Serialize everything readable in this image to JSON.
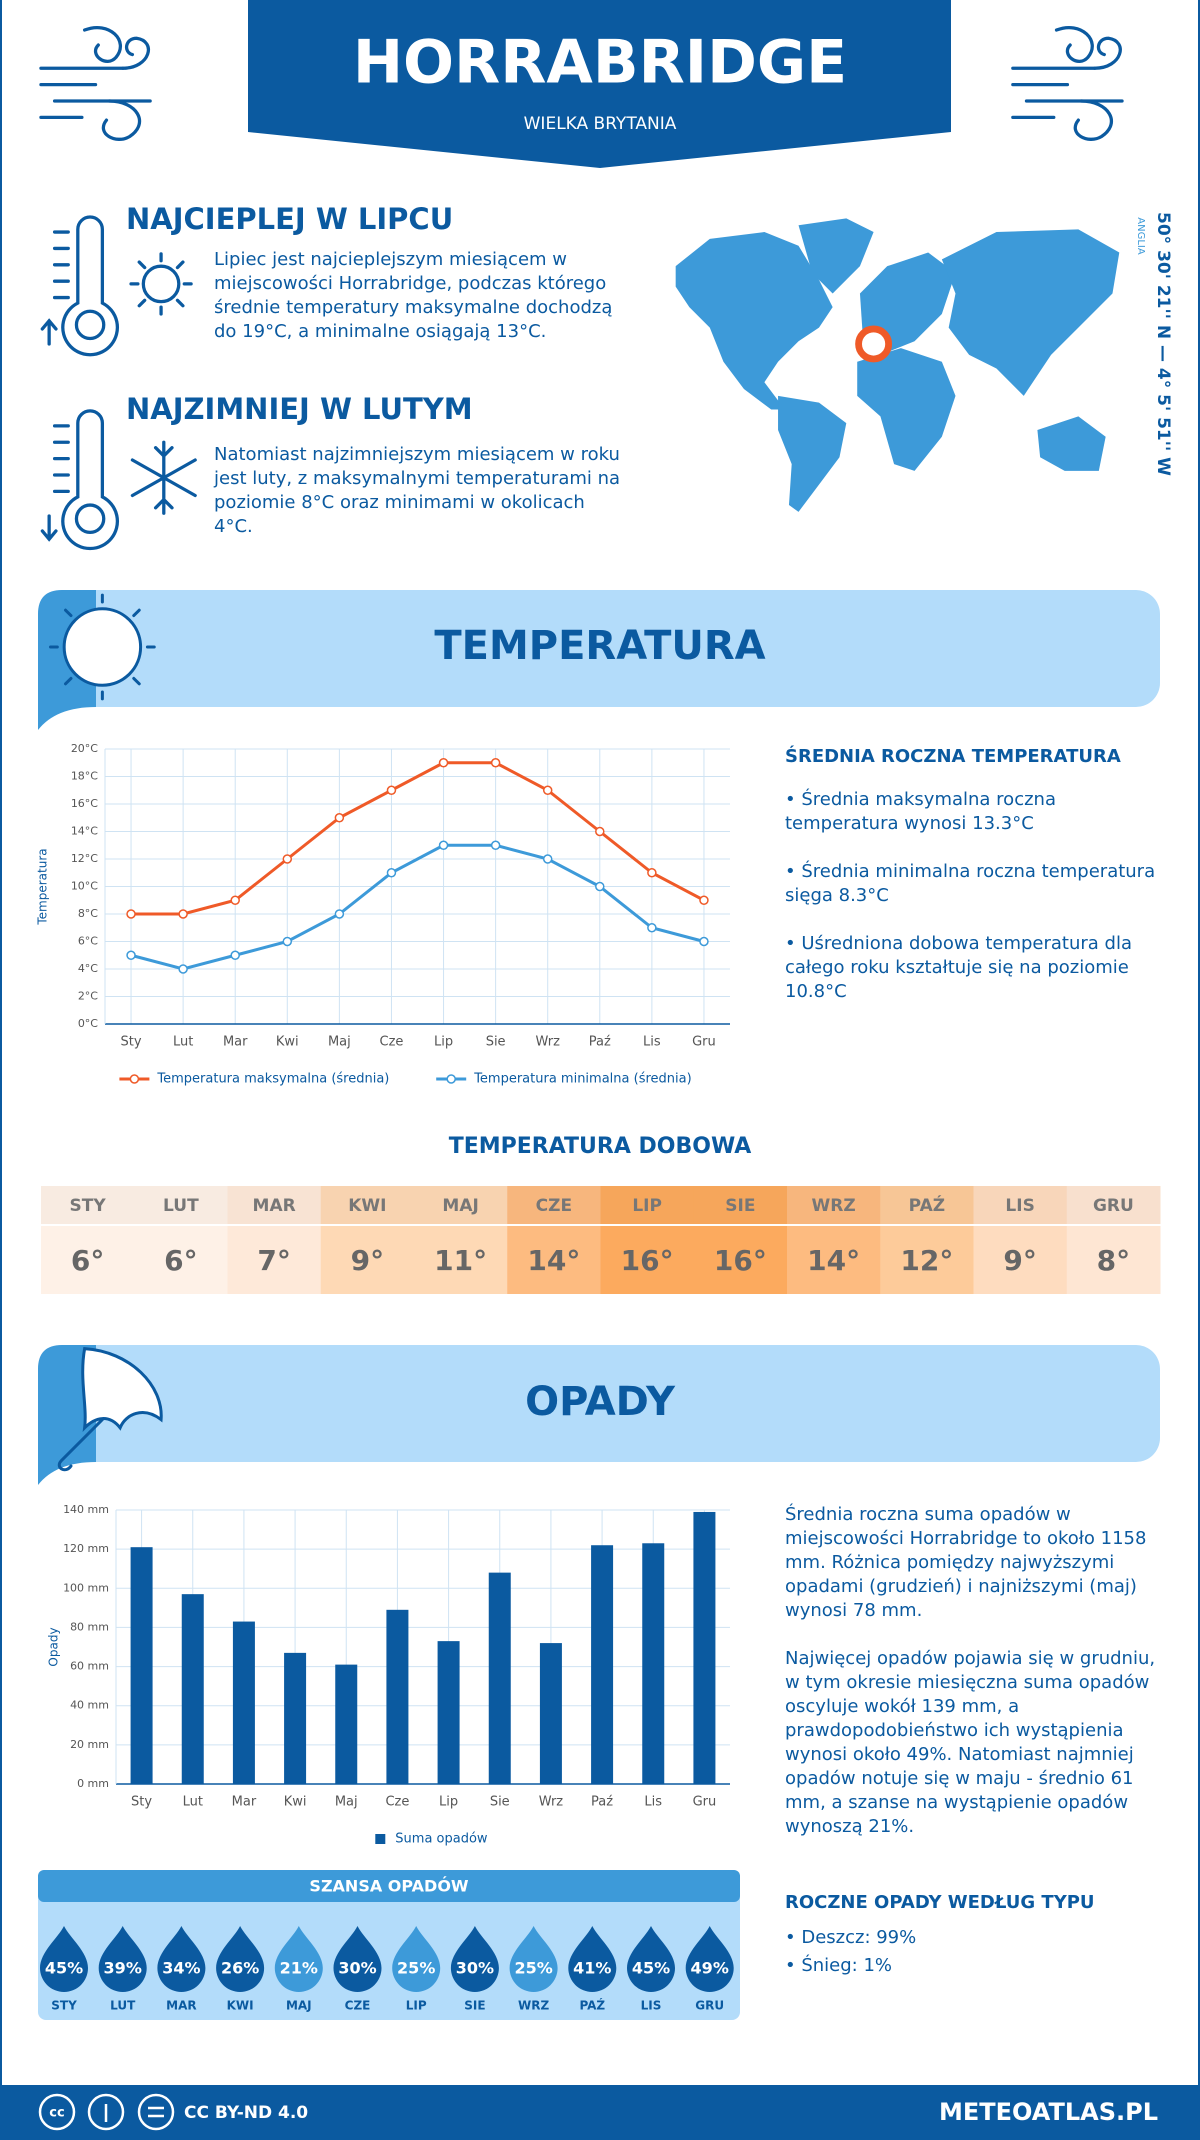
{
  "header": {
    "title": "HORRABRIDGE",
    "subtitle": "WIELKA BRYTANIA"
  },
  "warmest": {
    "title": "NAJCIEPLEJ W LIPCU",
    "text": "Lipiec jest najcieplejszym miesiącem w miejscowości Horrabridge, podczas którego średnie temperatury maksymalne dochodzą do 19°C, a minimalne osiągają 13°C."
  },
  "coldest": {
    "title": "NAJZIMNIEJ W LUTYM",
    "text": "Natomiast najzimniejszym miesiącem w roku jest luty, z maksymalnymi temperaturami na poziomie 8°C oraz minimami w okolicach 4°C."
  },
  "location": {
    "coordinates": "50° 30' 21'' N — 4° 5' 51'' W",
    "region": "ANGLIA"
  },
  "temperature_section": {
    "title": "TEMPERATURA"
  },
  "temperature_stats": {
    "title": "ŚREDNIA ROCZNA TEMPERATURA",
    "items": [
      "• Średnia maksymalna roczna temperatura wynosi 13.3°C",
      "• Średnia minimalna roczna temperatura sięga 8.3°C",
      "• Uśredniona dobowa temperatura dla całego roku kształtuje się na poziomie 10.8°C"
    ]
  },
  "daily_temperature": {
    "title": "TEMPERATURA DOBOWA",
    "months": [
      "STY",
      "LUT",
      "MAR",
      "KWI",
      "MAJ",
      "CZE",
      "LIP",
      "SIE",
      "WRZ",
      "PAŹ",
      "LIS",
      "GRU"
    ],
    "values": [
      "6°",
      "6°",
      "7°",
      "9°",
      "11°",
      "14°",
      "16°",
      "16°",
      "14°",
      "12°",
      "9°",
      "8°"
    ],
    "colors": [
      "#fef1e7",
      "#fef1e7",
      "#fee9d9",
      "#fed9b5",
      "#fed9b5",
      "#fdbb80",
      "#fcaa5e",
      "#fcaa5e",
      "#fdbb80",
      "#fdcb9a",
      "#fedcbf",
      "#fee6d3"
    ]
  },
  "precipitation_section": {
    "title": "OPADY"
  },
  "precipitation_text": {
    "paragraphs": [
      "Średnia roczna suma opadów w miejscowości Horrabridge to około 1158 mm. Różnica pomiędzy najwyższymi opadami (grudzień) i najniższymi (maj) wynosi 78 mm.",
      "Najwięcej opadów pojawia się w grudniu, w tym okresie miesięczna suma opadów oscyluje wokół 139 mm, a prawdopodobieństwo ich wystąpienia wynosi około 49%. Natomiast najmniej opadów notuje się w maju - średnio 61 mm, a szanse na wystąpienie opadów wynoszą 21%."
    ]
  },
  "precipitation_chance": {
    "title": "SZANSA OPADÓW",
    "months": [
      "STY",
      "LUT",
      "MAR",
      "KWI",
      "MAJ",
      "CZE",
      "LIP",
      "SIE",
      "WRZ",
      "PAŹ",
      "LIS",
      "GRU"
    ],
    "values": [
      45,
      39,
      34,
      26,
      21,
      30,
      25,
      30,
      25,
      41,
      45,
      49
    ],
    "value_labels": [
      "45%",
      "39%",
      "34%",
      "26%",
      "21%",
      "30%",
      "25%",
      "30%",
      "25%",
      "41%",
      "45%",
      "49%"
    ],
    "colors": [
      "#0b5aa0",
      "#0b5aa0",
      "#0b5aa0",
      "#0b5aa0",
      "#3d9ad9",
      "#0b5aa0",
      "#3d9ad9",
      "#0b5aa0",
      "#3d9ad9",
      "#0b5aa0",
      "#0b5aa0",
      "#0b5aa0"
    ]
  },
  "precipitation_types": {
    "title": "ROCZNE OPADY WEDŁUG TYPU",
    "items": [
      "• Deszcz: 99%",
      "• Śnieg: 1%"
    ]
  },
  "footer": {
    "license": "CC BY-ND 4.0",
    "site": "METEOATLAS.PL"
  },
  "chart_data": [
    {
      "type": "line",
      "y_label": "Temperatura",
      "categories": [
        "Sty",
        "Lut",
        "Mar",
        "Kwi",
        "Maj",
        "Cze",
        "Lip",
        "Sie",
        "Wrz",
        "Paź",
        "Lis",
        "Gru"
      ],
      "series": [
        {
          "name": "Temperatura maksymalna (średnia)",
          "color": "#ef5a28",
          "values": [
            8,
            8,
            9,
            12,
            15,
            17,
            19,
            19,
            17,
            14,
            11,
            9
          ]
        },
        {
          "name": "Temperatura minimalna (średnia)",
          "color": "#3d9ad9",
          "values": [
            5,
            4,
            5,
            6,
            8,
            11,
            13,
            13,
            12,
            10,
            7,
            6
          ]
        }
      ],
      "ylim": [
        0,
        20
      ],
      "yticks": [
        {
          "value": 0,
          "label": "0°C"
        },
        {
          "value": 2,
          "label": "2°C"
        },
        {
          "value": 4,
          "label": "4°C"
        },
        {
          "value": 6,
          "label": "6°C"
        },
        {
          "value": 8,
          "label": "8°C"
        },
        {
          "value": 10,
          "label": "10°C"
        },
        {
          "value": 12,
          "label": "12°C"
        },
        {
          "value": 14,
          "label": "14°C"
        },
        {
          "value": 16,
          "label": "16°C"
        },
        {
          "value": 18,
          "label": "18°C"
        },
        {
          "value": 20,
          "label": "20°C"
        }
      ],
      "grid": true
    },
    {
      "type": "bar",
      "y_label": "Opady",
      "categories": [
        "Sty",
        "Lut",
        "Mar",
        "Kwi",
        "Maj",
        "Cze",
        "Lip",
        "Sie",
        "Wrz",
        "Paź",
        "Lis",
        "Gru"
      ],
      "series": [
        {
          "name": "Suma opadów",
          "color": "#0b5aa0",
          "values": [
            121,
            97,
            83,
            67,
            61,
            89,
            73,
            108,
            72,
            122,
            123,
            139
          ]
        }
      ],
      "ylim": [
        0,
        140
      ],
      "yticks": [
        {
          "value": 0,
          "label": "0 mm"
        },
        {
          "value": 20,
          "label": "20 mm"
        },
        {
          "value": 40,
          "label": "40 mm"
        },
        {
          "value": 60,
          "label": "60 mm"
        },
        {
          "value": 80,
          "label": "80 mm"
        },
        {
          "value": 100,
          "label": "100 mm"
        },
        {
          "value": 120,
          "label": "120 mm"
        },
        {
          "value": 140,
          "label": "140 mm"
        }
      ],
      "grid": true
    }
  ]
}
